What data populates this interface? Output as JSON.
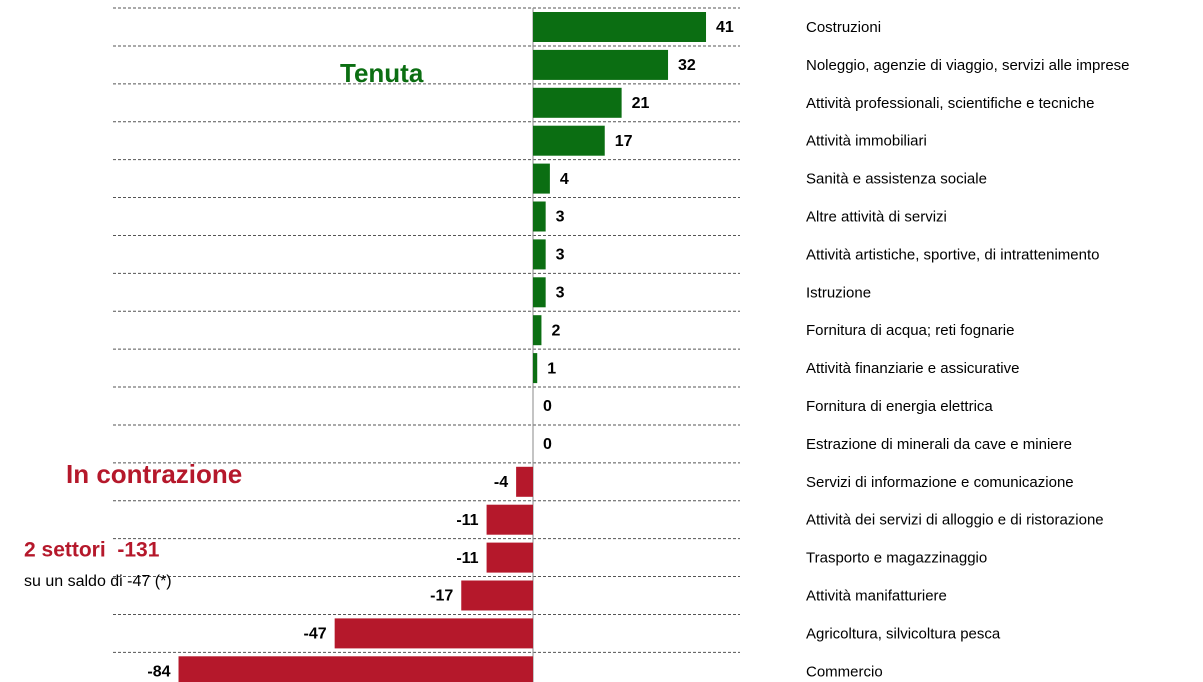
{
  "chart_data": {
    "type": "barh",
    "categories": [
      "Costruzioni",
      "Noleggio, agenzie di viaggio, servizi alle imprese",
      "Attività professionali, scientifiche e tecniche",
      "Attività immobiliari",
      "Sanità e assistenza sociale",
      "Altre attività di servizi",
      "Attività artistiche, sportive, di intrattenimento",
      "Istruzione",
      "Fornitura di acqua; reti fognarie",
      "Attività finanziarie e assicurative",
      "Fornitura di energia elettrica",
      "Estrazione di minerali da cave e miniere",
      "Servizi di informazione e comunicazione",
      "Attività dei servizi di alloggio e di ristorazione",
      "Trasporto e magazzinaggio",
      "Attività manifatturiere",
      "Agricoltura, silvicoltura pesca",
      "Commercio"
    ],
    "values": [
      41,
      32,
      21,
      17,
      4,
      3,
      3,
      3,
      2,
      1,
      0,
      0,
      -4,
      -11,
      -11,
      -17,
      -47,
      -84
    ],
    "positive_color": "#0b6e12",
    "negative_color": "#b5182b",
    "xlim": [
      -100,
      50
    ],
    "annotations": [
      {
        "text": "Tenuta",
        "color": "#0b6e12"
      },
      {
        "text": "In contrazione",
        "color": "#b5182b"
      },
      {
        "text": "2 settori  -131",
        "color": "#b5182b"
      },
      {
        "text": "su un saldo di -47 (*)",
        "color": "#000000"
      }
    ]
  }
}
